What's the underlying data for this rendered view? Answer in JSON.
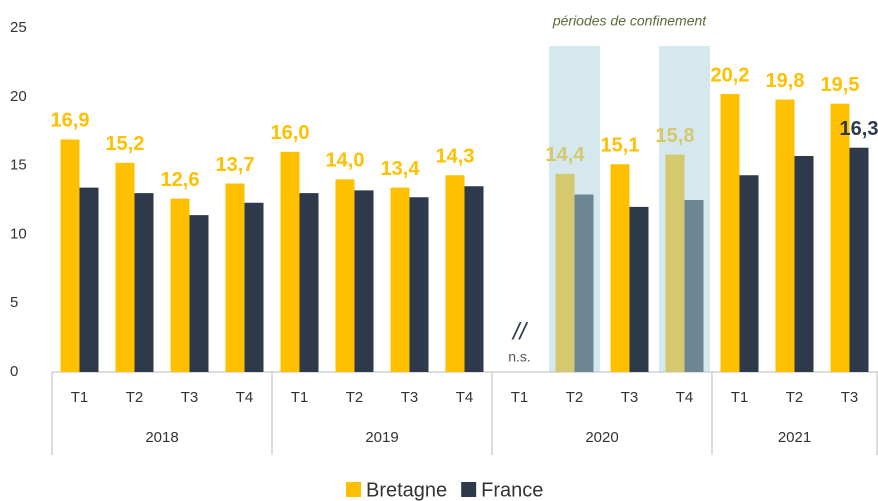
{
  "chart_data": {
    "type": "bar",
    "groups": [
      {
        "name": "2018",
        "categories": [
          "T1",
          "T2",
          "T3",
          "T4"
        ]
      },
      {
        "name": "2019",
        "categories": [
          "T1",
          "T2",
          "T3",
          "T4"
        ]
      },
      {
        "name": "2020",
        "categories": [
          "T1",
          "T2",
          "T3",
          "T4"
        ]
      },
      {
        "name": "2021",
        "categories": [
          "T1",
          "T2",
          "T3"
        ]
      }
    ],
    "series": [
      {
        "name": "Bretagne",
        "color": "#ffc000",
        "values": [
          16.9,
          15.2,
          12.6,
          13.7,
          16.0,
          14.0,
          13.4,
          14.3,
          null,
          14.4,
          15.1,
          15.8,
          20.2,
          19.8,
          19.5
        ],
        "value_labels": [
          "16,9",
          "15,2",
          "12,6",
          "13,7",
          "16,0",
          "14,0",
          "13,4",
          "14,3",
          null,
          "14,4",
          "15,1",
          "15,8",
          "20,2",
          "19,8",
          "19,5"
        ]
      },
      {
        "name": "France",
        "color": "#2e3a4b",
        "values": [
          13.4,
          13.0,
          11.4,
          12.3,
          13.0,
          13.2,
          12.7,
          13.5,
          null,
          12.9,
          12.0,
          12.5,
          14.3,
          15.7,
          16.3
        ],
        "value_labels": [
          null,
          null,
          null,
          null,
          null,
          null,
          null,
          null,
          null,
          null,
          null,
          null,
          null,
          null,
          "16,3"
        ]
      }
    ],
    "ylim": [
      0,
      25
    ],
    "yticks": [
      0,
      5,
      10,
      15,
      20,
      25
    ],
    "shading": {
      "label": "périodes de confinement",
      "color": "#a9d1dc",
      "at": [
        [
          2,
          1
        ],
        [
          2,
          3
        ]
      ]
    },
    "not_significant": {
      "mark": "//",
      "label": "n.s.",
      "at": [
        2,
        0
      ]
    },
    "legend": "bottom"
  }
}
